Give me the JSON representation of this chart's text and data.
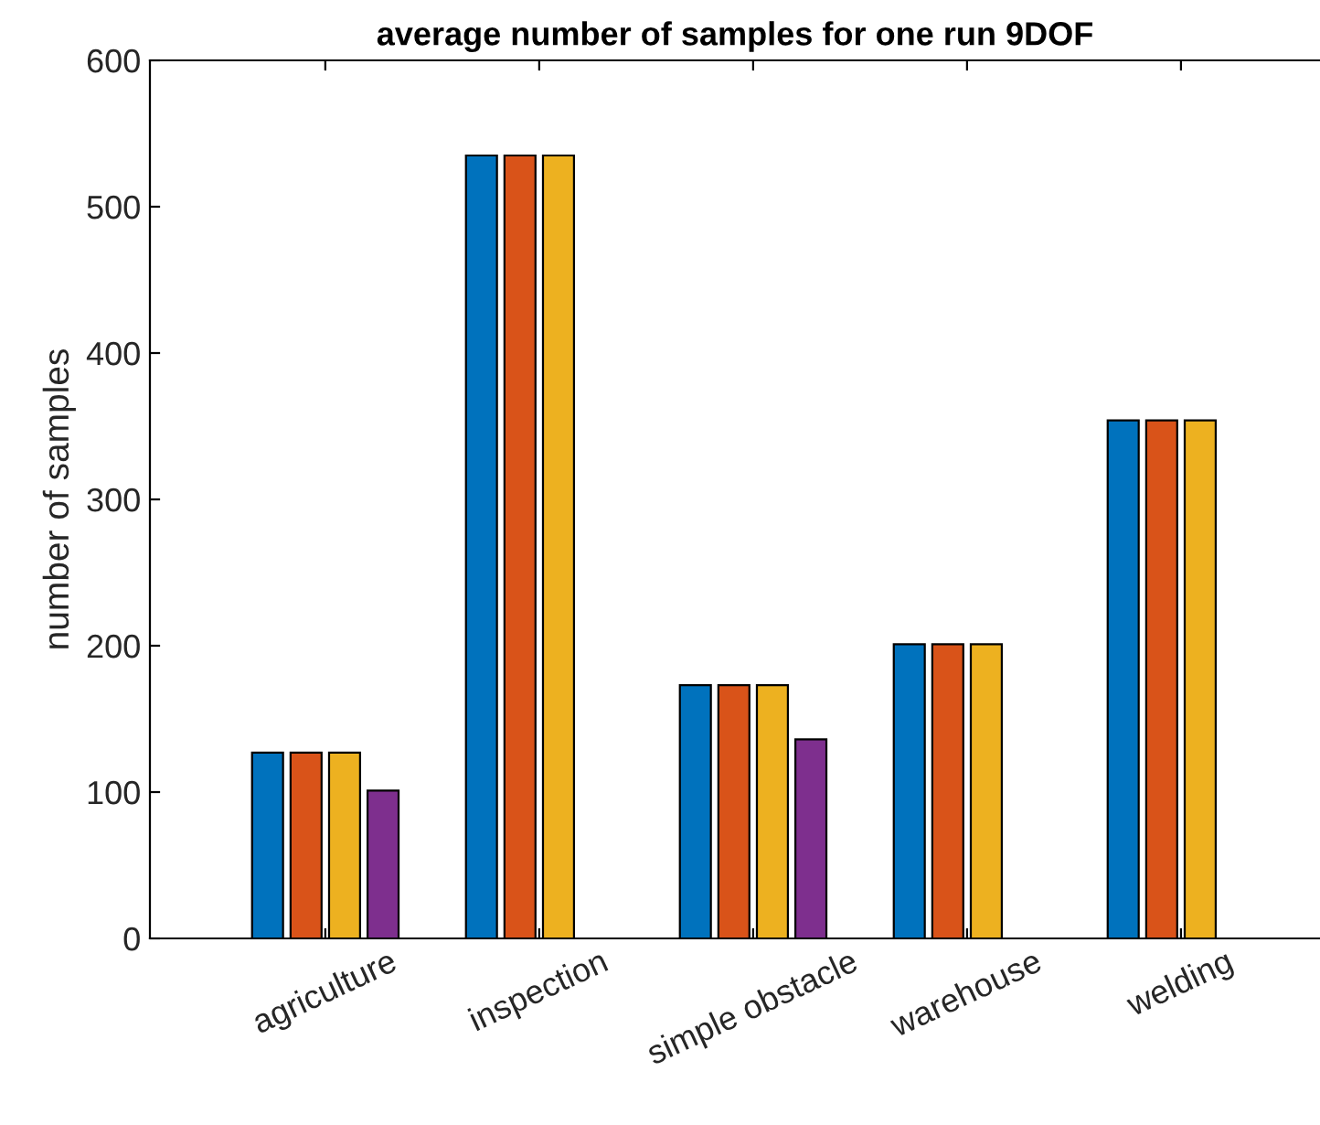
{
  "chart_data": {
    "type": "bar",
    "title": "average number of samples for one run 9DOF",
    "ylabel": "number of samples",
    "categories": [
      "agriculture",
      "inspection",
      "simple obstacle",
      "warehouse",
      "welding"
    ],
    "series": [
      {
        "color": "#0072bd",
        "values": [
          127,
          535,
          173,
          201,
          354
        ]
      },
      {
        "color": "#d95319",
        "values": [
          127,
          535,
          173,
          201,
          354
        ]
      },
      {
        "color": "#edb120",
        "values": [
          127,
          535,
          173,
          201,
          354
        ]
      },
      {
        "color": "#7e2f8e",
        "values": [
          101,
          null,
          136,
          null,
          null
        ]
      }
    ],
    "ylim": [
      0,
      600
    ],
    "yticks": [
      0,
      100,
      200,
      300,
      400,
      500,
      600
    ],
    "grid": false,
    "legend": false
  }
}
